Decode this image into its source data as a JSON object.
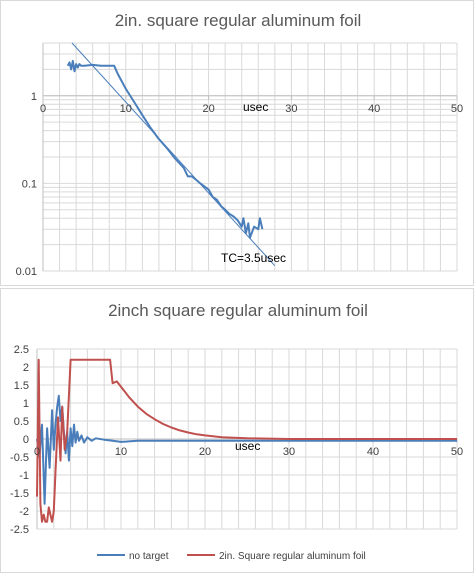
{
  "colors": {
    "blue": "#4a7ebb",
    "red": "#c0504d",
    "grid": "#d9d9d9",
    "axis": "#bfbfbf"
  },
  "chart_data": [
    {
      "type": "line",
      "title": "2in. square regular aluminum foil",
      "xlabel": "usec",
      "ylabel": "",
      "xlim": [
        0,
        50
      ],
      "ylim": [
        0.01,
        4
      ],
      "y_scale": "log",
      "grid": true,
      "x_ticks": [
        "0",
        "10",
        "20",
        "30",
        "40",
        "50"
      ],
      "y_ticks": [
        "0.01",
        "0.1",
        "1"
      ],
      "annotation": "TC=3.5usec",
      "series": [
        {
          "color": "#4a7ebb",
          "style": "solid",
          "x": [
            3.0,
            3.2,
            3.4,
            3.6,
            3.8,
            4.0,
            4.2,
            4.4,
            4.6,
            5.0,
            6.0,
            7.0,
            8.0,
            8.6,
            9.0,
            10.0,
            11.0,
            12.0,
            13.0,
            14.0,
            15.0,
            16.0,
            17.0,
            17.5,
            18.0,
            19.0,
            20.0,
            20.5,
            21.0,
            21.5,
            22.0,
            22.5,
            23.0,
            23.5,
            24.0,
            24.2,
            24.5,
            24.8,
            25.0,
            25.5,
            26.0,
            26.2,
            26.5
          ],
          "y": [
            2.2,
            2.4,
            2.0,
            2.5,
            1.9,
            2.3,
            2.1,
            2.3,
            2.2,
            2.2,
            2.25,
            2.2,
            2.2,
            2.2,
            1.8,
            1.2,
            0.85,
            0.6,
            0.43,
            0.32,
            0.25,
            0.19,
            0.15,
            0.12,
            0.12,
            0.1,
            0.085,
            0.07,
            0.065,
            0.055,
            0.05,
            0.045,
            0.042,
            0.038,
            0.032,
            0.04,
            0.027,
            0.035,
            0.024,
            0.032,
            0.03,
            0.04,
            0.03
          ]
        },
        {
          "color": "#4a7ebb",
          "style": "thin-fit",
          "x": [
            3.5,
            28.0
          ],
          "y": [
            4.0,
            0.0115
          ]
        }
      ]
    },
    {
      "type": "line",
      "title": "2inch square regular aluminum foil",
      "xlabel": "usec",
      "ylabel": "",
      "xlim": [
        0,
        50
      ],
      "ylim": [
        -2.5,
        2.5
      ],
      "grid": true,
      "x_ticks": [
        "0",
        "10",
        "20",
        "30",
        "40",
        "50"
      ],
      "y_ticks": [
        "2.5",
        "2",
        "1.5",
        "1",
        "0.5",
        "0",
        "-0.5",
        "-1",
        "-1.5",
        "-2",
        "-2.5"
      ],
      "legend_position": "bottom",
      "series": [
        {
          "name": "no target",
          "color": "#4a7ebb",
          "x": [
            0.0,
            0.3,
            0.6,
            0.9,
            1.2,
            1.5,
            1.8,
            2.0,
            2.2,
            2.4,
            2.6,
            2.8,
            3.0,
            3.2,
            3.4,
            3.6,
            3.8,
            4.0,
            4.2,
            4.4,
            4.6,
            4.8,
            5.0,
            5.3,
            5.6,
            6.0,
            6.5,
            7.0,
            8.0,
            9.0,
            10.0,
            12.0,
            15.0,
            20.0,
            30.0,
            40.0,
            50.0
          ],
          "y": [
            0.0,
            -0.5,
            0.4,
            -1.8,
            0.3,
            -0.8,
            0.8,
            -0.3,
            0.4,
            0.9,
            1.2,
            0.5,
            0.9,
            0.2,
            -0.4,
            0.2,
            -0.6,
            0.3,
            -0.2,
            0.4,
            -0.1,
            0.2,
            -0.05,
            0.1,
            -0.1,
            0.05,
            -0.05,
            0.02,
            -0.02,
            -0.05,
            -0.08,
            -0.05,
            -0.05,
            -0.05,
            -0.05,
            -0.05,
            -0.05
          ]
        },
        {
          "name": "2in. Square regular aluminum foil",
          "color": "#c0504d",
          "x": [
            0.0,
            0.2,
            0.4,
            0.6,
            0.8,
            1.0,
            1.2,
            1.4,
            1.6,
            1.8,
            2.0,
            2.2,
            2.5,
            2.8,
            3.0,
            3.3,
            3.6,
            4.0,
            5.0,
            6.0,
            7.0,
            8.0,
            8.7,
            9.0,
            9.5,
            10.0,
            11.0,
            12.0,
            13.0,
            14.0,
            15.0,
            16.0,
            17.0,
            18.0,
            19.0,
            20.0,
            22.0,
            25.0,
            30.0,
            40.0,
            50.0
          ],
          "y": [
            -1.6,
            2.2,
            -1.8,
            -2.3,
            -2.1,
            -2.3,
            -2.3,
            -1.9,
            -2.1,
            -2.3,
            -2.0,
            -0.9,
            0.6,
            -0.6,
            0.9,
            -0.3,
            0.2,
            2.2,
            2.2,
            2.2,
            2.2,
            2.2,
            2.2,
            1.55,
            1.6,
            1.45,
            1.15,
            0.9,
            0.7,
            0.55,
            0.42,
            0.32,
            0.24,
            0.18,
            0.13,
            0.1,
            0.05,
            0.02,
            0.0,
            0.0,
            0.0
          ]
        }
      ]
    }
  ]
}
